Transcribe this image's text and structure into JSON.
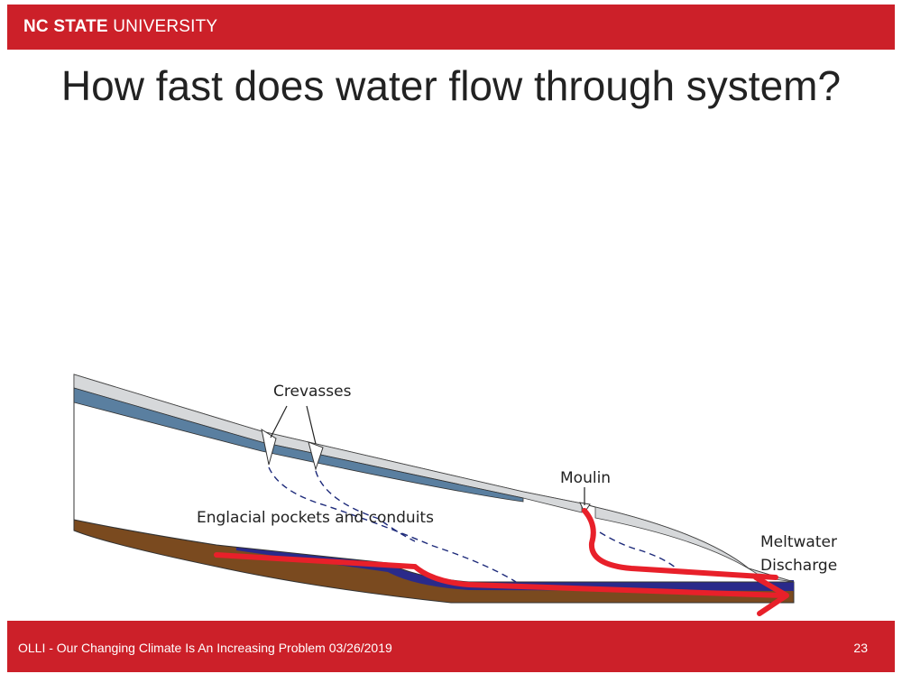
{
  "header": {
    "brand_bold": "NC STATE",
    "brand_rest": "UNIVERSITY"
  },
  "title": "How fast does water flow through system?",
  "diagram": {
    "labels": {
      "crevasses": "Crevasses",
      "moulin": "Moulin",
      "englacial": "Englacial pockets and conduits",
      "discharge_line1": "Meltwater",
      "discharge_line2": "Discharge"
    }
  },
  "footer": {
    "text": "OLLI - Our Changing Climate Is An Increasing Problem 03/26/2019",
    "page": "23"
  }
}
